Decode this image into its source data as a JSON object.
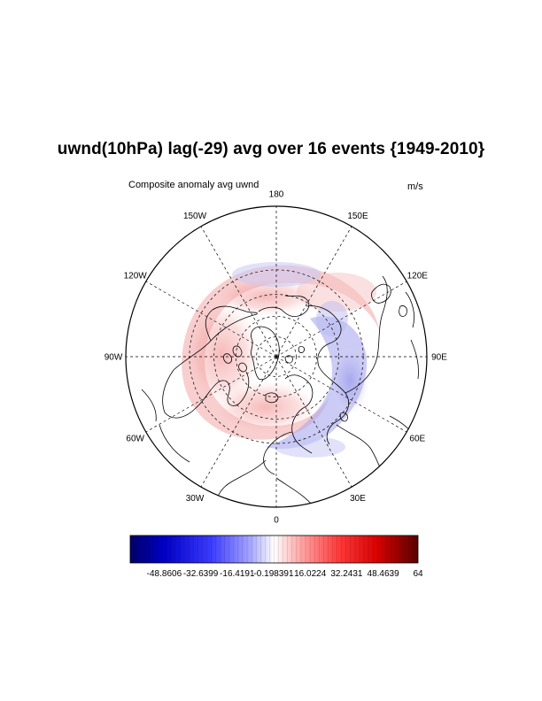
{
  "title": "uwnd(10hPa) lag(-29) avg over 16 events {1949-2010}",
  "left_subtitle": "Composite anomaly avg uwnd",
  "right_subtitle": "m/s",
  "map": {
    "projection": "north-polar-stereographic",
    "longitude_labels": [
      {
        "lon": 180,
        "text": "180"
      },
      {
        "lon": -150,
        "text": "150W"
      },
      {
        "lon": 150,
        "text": "150E"
      },
      {
        "lon": -120,
        "text": "120W"
      },
      {
        "lon": 120,
        "text": "120E"
      },
      {
        "lon": -90,
        "text": "90W"
      },
      {
        "lon": 90,
        "text": "90E"
      },
      {
        "lon": -60,
        "text": "60W"
      },
      {
        "lon": 60,
        "text": "60E"
      },
      {
        "lon": -30,
        "text": "30W"
      },
      {
        "lon": 30,
        "text": "30E"
      },
      {
        "lon": 0,
        "text": "0"
      }
    ],
    "latitude_circles_deg": [
      30,
      45,
      60,
      75
    ],
    "colors": {
      "positive": "#e8221e",
      "negative": "#2a2ae0",
      "coast": "#000000",
      "grid": "#000000"
    }
  },
  "colorbar": {
    "min": -64,
    "max": 64,
    "tick_labels": [
      "-48.8606",
      "-32.6399",
      "-16.4191",
      "-0.198391",
      "16.0224",
      "32.2431",
      "48.4639",
      "64"
    ],
    "colors": {
      "low": "#00008f",
      "mid_low": "#1c1cff",
      "center": "#ffffff",
      "mid_high": "#ff1818",
      "high": "#6b0000"
    }
  }
}
